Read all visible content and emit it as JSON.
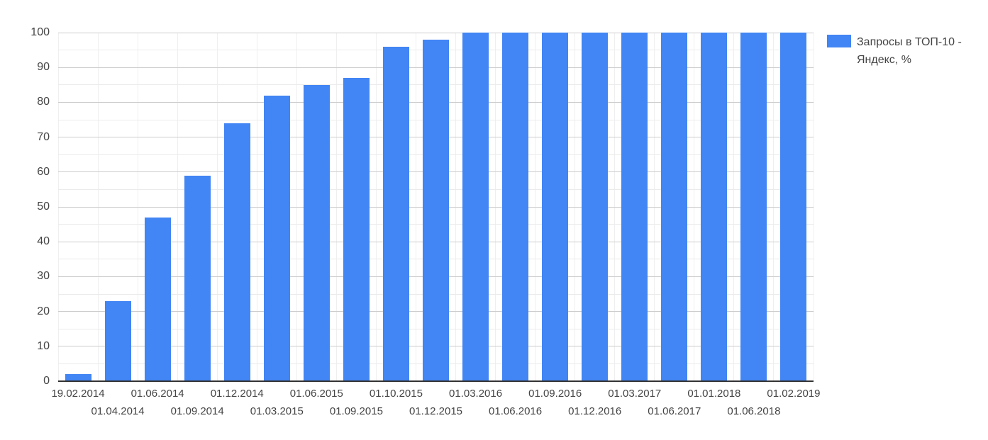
{
  "legend": {
    "label": "Запросы в ТОП-10 - Яндекс, %"
  },
  "chart_data": {
    "type": "bar",
    "title": "",
    "xlabel": "",
    "ylabel": "",
    "categories": [
      "19.02.2014",
      "01.04.2014",
      "01.06.2014",
      "01.09.2014",
      "01.12.2014",
      "01.03.2015",
      "01.06.2015",
      "01.09.2015",
      "01.10.2015",
      "01.12.2015",
      "01.03.2016",
      "01.06.2016",
      "01.09.2016",
      "01.12.2016",
      "01.03.2017",
      "01.06.2017",
      "01.01.2018",
      "01.06.2018",
      "01.02.2019"
    ],
    "series": [
      {
        "name": "Запросы в ТОП-10 - Яндекс, %",
        "values": [
          2,
          23,
          47,
          59,
          74,
          82,
          85,
          87,
          96,
          98,
          100,
          100,
          100,
          100,
          100,
          100,
          100,
          100,
          100
        ]
      }
    ],
    "ylim": [
      0,
      100
    ],
    "ytick_major": 10,
    "ytick_minor": 5,
    "grid": "on",
    "legend_position": "right",
    "x_label_rows": "staggered",
    "colors": {
      "bar": "#4285F4",
      "label_text": "#444444",
      "grid_major": "#cccccc",
      "grid_minor": "#ebebeb",
      "grid_vertical": "#efefef",
      "axis_line": "#333333"
    }
  }
}
